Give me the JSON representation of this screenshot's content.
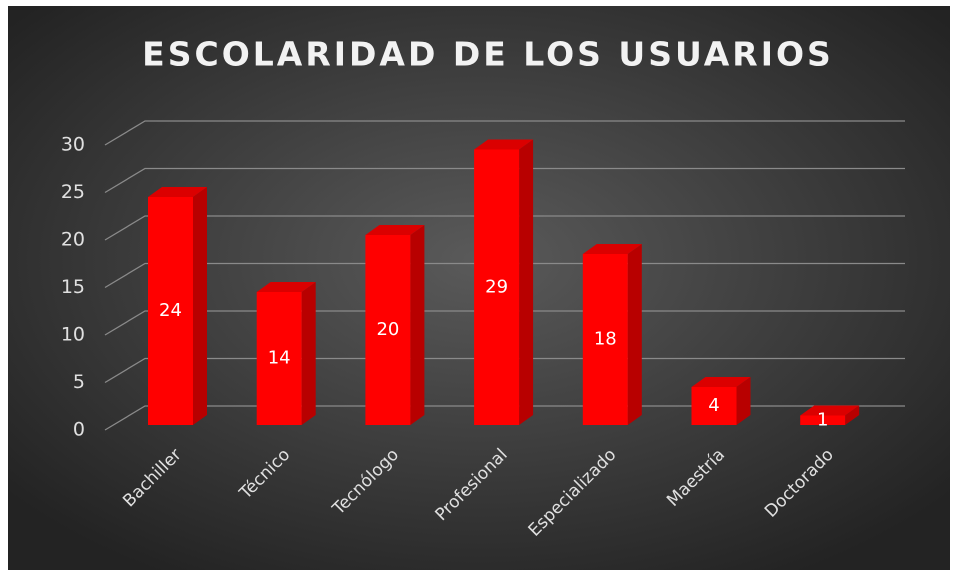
{
  "chart_data": {
    "type": "bar",
    "title": "ESCOLARIDAD DE LOS USUARIOS",
    "categories": [
      "Bachiller",
      "Técnico",
      "Tecnólogo",
      "Profesional",
      "Especializado",
      "Maestría",
      "Doctorado"
    ],
    "values": [
      24,
      14,
      20,
      29,
      18,
      4,
      1
    ],
    "color": "#ff0000",
    "ylim": [
      0,
      30
    ],
    "yticks": [
      0,
      5,
      10,
      15,
      20,
      25,
      30
    ],
    "grid": true
  }
}
